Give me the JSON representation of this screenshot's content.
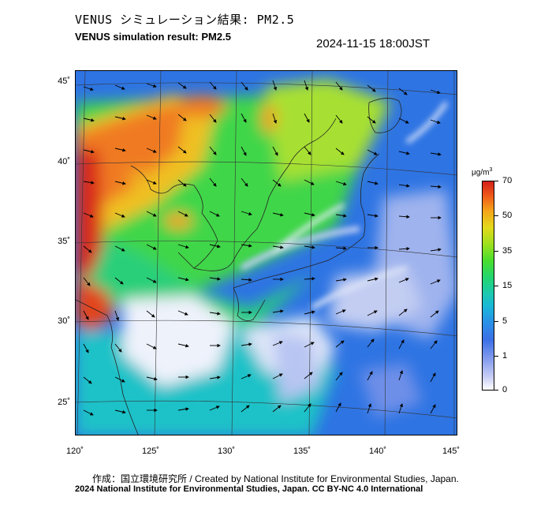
{
  "header": {
    "title_ja": "VENUS シミュレーション結果: PM2.5",
    "title_en": "VENUS simulation result: PM2.5",
    "timestamp": "2024-11-15 18:00JST"
  },
  "map": {
    "lat_labels": [
      "45˚",
      "40˚",
      "35˚",
      "30˚",
      "25˚"
    ],
    "lon_labels": [
      "120˚",
      "125˚",
      "130˚",
      "135˚",
      "140˚",
      "145˚"
    ],
    "lat_range": [
      23,
      46
    ],
    "lon_range": [
      120,
      146
    ]
  },
  "colorbar": {
    "unit": "μg/m",
    "unit_sup": "3",
    "ticks": [
      "70",
      "50",
      "35",
      "15",
      "5",
      "1",
      "0"
    ],
    "colors": {
      "min": "#ffffff",
      "low": "#3b70e6",
      "mid": "#23d66e",
      "high": "#e3d91a",
      "max": "#d3201b"
    }
  },
  "footer": {
    "credit": "作成：国立環境研究所 / Created by National Institute for Environmental Studies, Japan.",
    "copyright": "2024 National Institute for Environmental Studies, Japan. CC BY-NC 4.0 International"
  }
}
